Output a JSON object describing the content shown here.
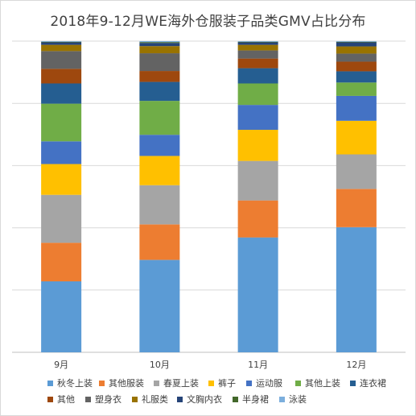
{
  "chart_data": {
    "type": "bar",
    "stacked": "percent",
    "title": "2018年9-12月WE海外仓服装子品类GMV占比分布",
    "categories": [
      "9月",
      "10月",
      "11月",
      "12月"
    ],
    "ylim": [
      0,
      1
    ],
    "grid": true,
    "legend_position": "bottom",
    "series": [
      {
        "name": "秋冬上装",
        "color": "#5B9BD5",
        "values": [
          0.228,
          0.297,
          0.369,
          0.402
        ]
      },
      {
        "name": "其他服装",
        "color": "#ED7D31",
        "values": [
          0.124,
          0.114,
          0.119,
          0.123
        ]
      },
      {
        "name": "春夏上装",
        "color": "#A5A5A5",
        "values": [
          0.154,
          0.126,
          0.127,
          0.111
        ]
      },
      {
        "name": "裤子",
        "color": "#FFC000",
        "values": [
          0.099,
          0.094,
          0.1,
          0.108
        ]
      },
      {
        "name": "运动服",
        "color": "#4472C4",
        "values": [
          0.073,
          0.068,
          0.08,
          0.08
        ]
      },
      {
        "name": "其他上装",
        "color": "#70AD47",
        "values": [
          0.121,
          0.109,
          0.069,
          0.043
        ]
      },
      {
        "name": "连衣裙",
        "color": "#255E91",
        "values": [
          0.065,
          0.061,
          0.049,
          0.036
        ]
      },
      {
        "name": "其他",
        "color": "#9E480E",
        "values": [
          0.047,
          0.035,
          0.031,
          0.031
        ]
      },
      {
        "name": "塑身衣",
        "color": "#636363",
        "values": [
          0.057,
          0.057,
          0.026,
          0.026
        ]
      },
      {
        "name": "礼服类",
        "color": "#997300",
        "values": [
          0.02,
          0.023,
          0.018,
          0.023
        ]
      },
      {
        "name": "文胸内衣",
        "color": "#264478",
        "values": [
          0.008,
          0.01,
          0.008,
          0.013
        ]
      },
      {
        "name": "半身裙",
        "color": "#43682B",
        "values": [
          0.002,
          0.003,
          0.002,
          0.002
        ]
      },
      {
        "name": "泳装",
        "color": "#7CAFDD",
        "values": [
          0.002,
          0.003,
          0.002,
          0.002
        ]
      }
    ]
  }
}
